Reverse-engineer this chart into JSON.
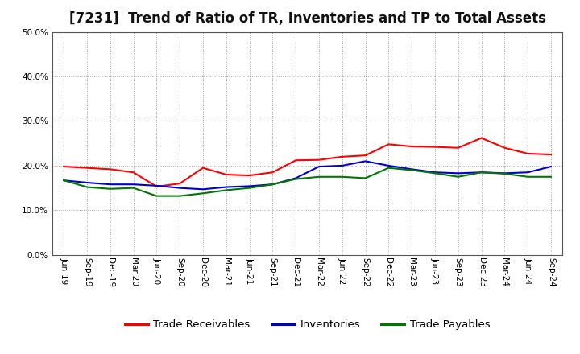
{
  "title": "[7231]  Trend of Ratio of TR, Inventories and TP to Total Assets",
  "x_labels": [
    "Jun-19",
    "Sep-19",
    "Dec-19",
    "Mar-20",
    "Jun-20",
    "Sep-20",
    "Dec-20",
    "Mar-21",
    "Jun-21",
    "Sep-21",
    "Dec-21",
    "Mar-22",
    "Jun-22",
    "Sep-22",
    "Dec-22",
    "Mar-23",
    "Jun-23",
    "Sep-23",
    "Dec-23",
    "Mar-24",
    "Jun-24",
    "Sep-24"
  ],
  "trade_receivables": [
    19.8,
    19.5,
    19.2,
    18.5,
    15.3,
    16.0,
    19.5,
    18.0,
    17.8,
    18.5,
    21.2,
    21.3,
    22.0,
    22.3,
    24.8,
    24.3,
    24.2,
    24.0,
    26.2,
    24.0,
    22.7,
    22.5
  ],
  "inventories": [
    16.7,
    16.2,
    15.8,
    15.8,
    15.5,
    15.0,
    14.7,
    15.2,
    15.4,
    15.8,
    17.2,
    19.8,
    20.0,
    21.0,
    20.0,
    19.2,
    18.5,
    18.3,
    18.5,
    18.3,
    18.5,
    19.8
  ],
  "trade_payables": [
    16.7,
    15.2,
    14.8,
    15.0,
    13.2,
    13.2,
    13.8,
    14.5,
    15.0,
    15.8,
    17.0,
    17.5,
    17.5,
    17.2,
    19.5,
    19.0,
    18.3,
    17.5,
    18.5,
    18.2,
    17.5,
    17.5
  ],
  "ylim": [
    0,
    50
  ],
  "yticks": [
    0.0,
    10.0,
    20.0,
    30.0,
    40.0,
    50.0
  ],
  "colors": {
    "trade_receivables": "#ff0000",
    "inventories": "#0000cc",
    "trade_payables": "#007700"
  },
  "legend_labels": [
    "Trade Receivables",
    "Inventories",
    "Trade Payables"
  ],
  "background_color": "#ffffff",
  "plot_bg_color": "#ffffff",
  "grid_color": "#999999",
  "title_fontsize": 12,
  "tick_fontsize": 7.5,
  "legend_fontsize": 9.5,
  "line_width": 1.5
}
